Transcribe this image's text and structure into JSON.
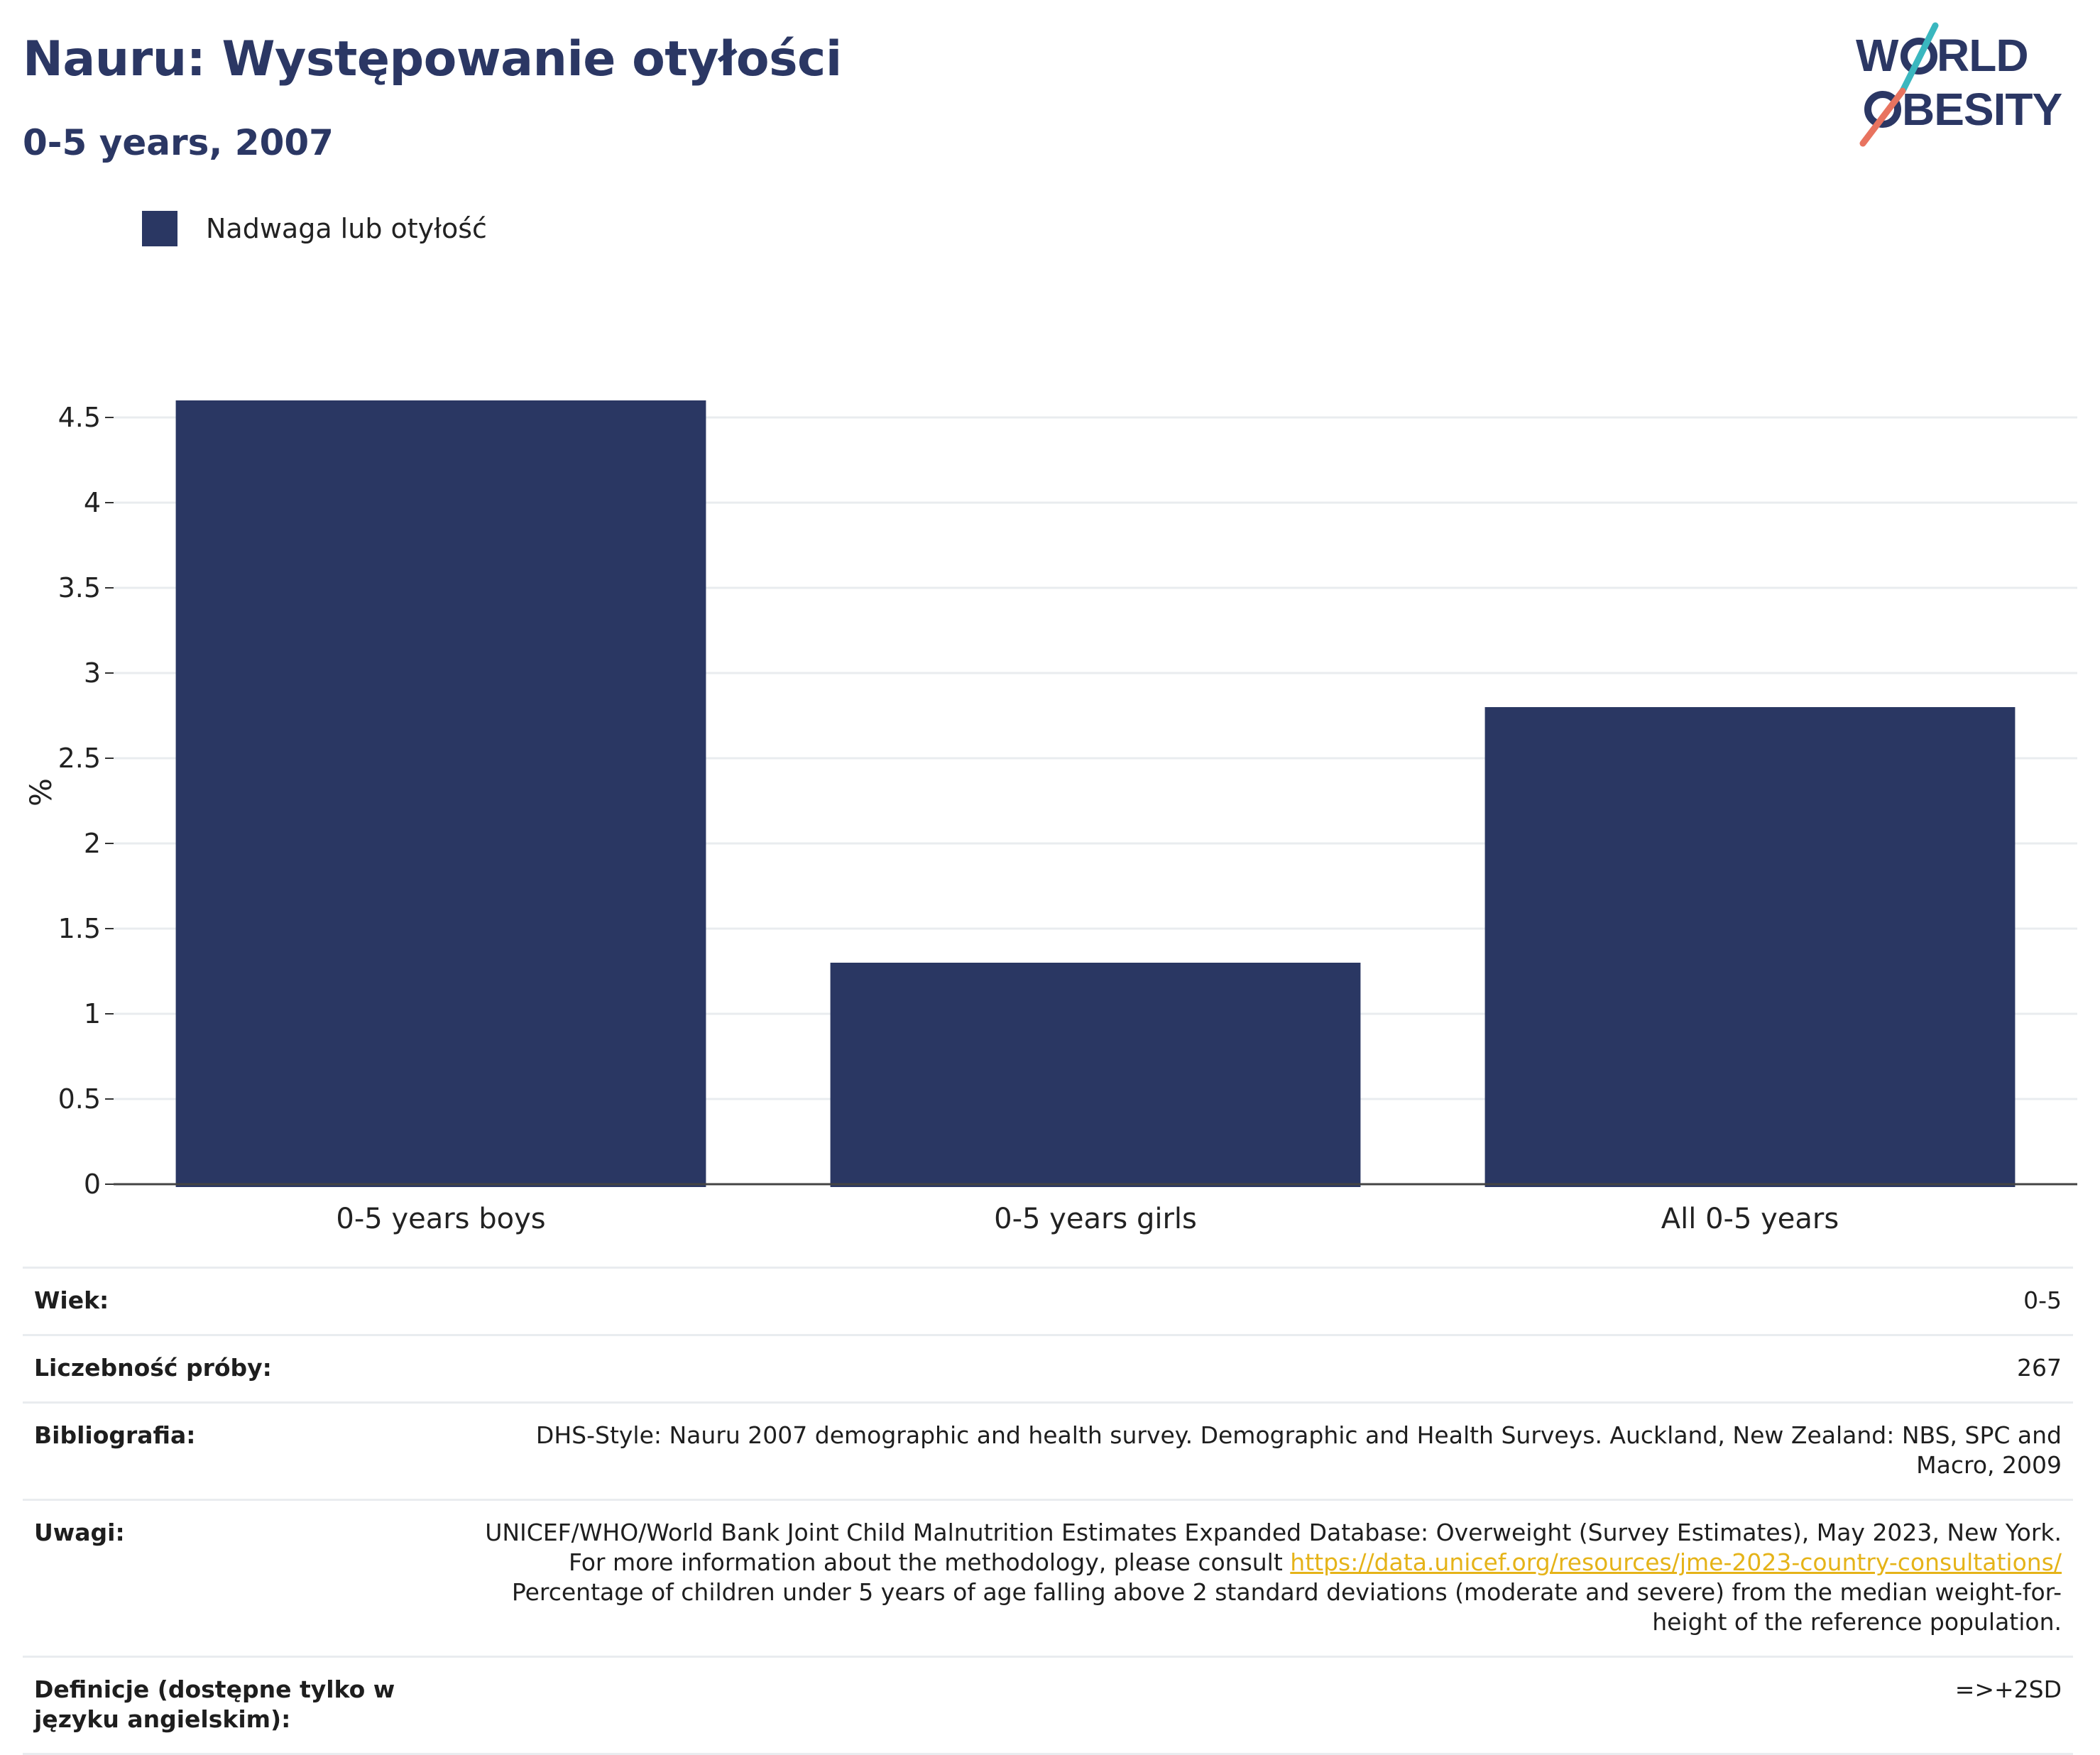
{
  "header": {
    "title": "Nauru: Występowanie otyłości",
    "subtitle": "0-5 years, 2007"
  },
  "logo": {
    "line1": "WORLD",
    "line2": "OBESITY"
  },
  "legend": {
    "label": "Nadwaga lub otyłość",
    "color": "#2a3763"
  },
  "chart_data": {
    "type": "bar",
    "categories": [
      "0-5 years boys",
      "0-5 years girls",
      "All 0-5 years"
    ],
    "series": [
      {
        "name": "Nadwaga lub otyłość",
        "values": [
          4.6,
          1.3,
          2.8
        ],
        "color": "#2a3763"
      }
    ],
    "ylabel": "%",
    "xlabel": "",
    "ylim": [
      0,
      4.5
    ],
    "yticks": [
      "0",
      "0.5",
      "1",
      "1.5",
      "2",
      "2.5",
      "3",
      "3.5",
      "4",
      "4.5"
    ],
    "grid": true,
    "legend_position": "top-left"
  },
  "info": {
    "rows": [
      {
        "label": "Wiek:",
        "value": "0-5"
      },
      {
        "label": "Liczebność próby:",
        "value": "267"
      },
      {
        "label": "Bibliografia:",
        "value": "DHS-Style: Nauru 2007 demographic and health survey. Demographic and Health Surveys. Auckland, New Zealand: NBS, SPC and Macro, 2009"
      },
      {
        "label": "Uwagi:",
        "value_before": "UNICEF/WHO/World Bank Joint Child Malnutrition Estimates Expanded Database: Overweight (Survey Estimates), May 2023, New York. For more information about the methodology, please consult ",
        "link": "https://data.unicef.org/resources/jme-2023-country-consultations/",
        "value_after": " Percentage of children under 5 years of age falling above 2 standard deviations (moderate and severe) from the median weight-for-height of the reference population."
      },
      {
        "label": "Definicje (dostępne tylko w języku angielskim):",
        "value": "=>+2SD"
      }
    ]
  }
}
